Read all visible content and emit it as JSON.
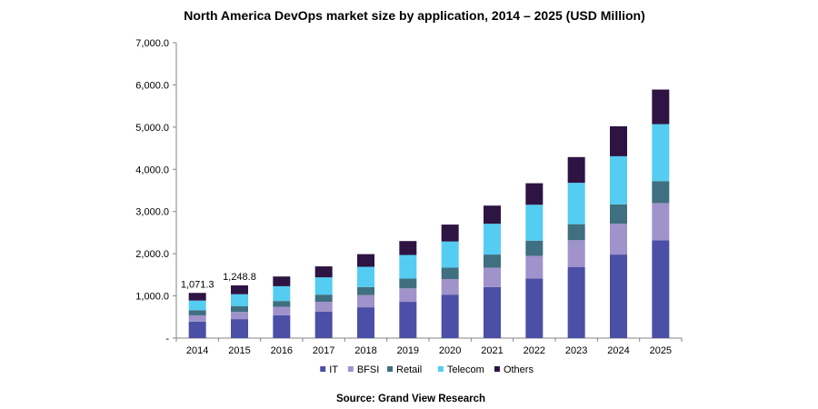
{
  "chart_data": {
    "type": "bar",
    "stacked": true,
    "title": "North America DevOps market size by application, 2014 – 2025 (USD Million)",
    "source": "Source: Grand View Research",
    "categories": [
      "2014",
      "2015",
      "2016",
      "2017",
      "2018",
      "2019",
      "2020",
      "2021",
      "2022",
      "2023",
      "2024",
      "2025"
    ],
    "series": [
      {
        "name": "IT",
        "color": "#4b4fa6",
        "values": [
          390,
          450,
          540,
          630,
          730,
          860,
          1030,
          1210,
          1410,
          1680,
          1980,
          2320
        ]
      },
      {
        "name": "BFSI",
        "color": "#a092cb",
        "values": [
          150,
          170,
          200,
          230,
          290,
          320,
          370,
          460,
          540,
          640,
          730,
          880
        ]
      },
      {
        "name": "Retail",
        "color": "#3f6f80",
        "values": [
          120,
          140,
          140,
          170,
          190,
          230,
          270,
          310,
          360,
          380,
          460,
          520
        ]
      },
      {
        "name": "Telecom",
        "color": "#55ccf2",
        "values": [
          230,
          280,
          350,
          410,
          480,
          560,
          620,
          730,
          850,
          980,
          1140,
          1350
        ]
      },
      {
        "name": "Others",
        "color": "#2d1443",
        "values": [
          181.3,
          208.8,
          230,
          260,
          300,
          330,
          400,
          430,
          510,
          610,
          710,
          820
        ]
      }
    ],
    "data_labels": {
      "2014": "1,071.3",
      "2015": "1,248.8"
    },
    "ylim": [
      0,
      7000
    ],
    "yticks": [
      0,
      1000,
      2000,
      3000,
      4000,
      5000,
      6000,
      7000
    ],
    "ytick_labels": [
      "-",
      "1,000.0",
      "2,000.0",
      "3,000.0",
      "4,000.0",
      "5,000.0",
      "6,000.0",
      "7,000.0"
    ],
    "grid": false,
    "legend_position": "bottom"
  }
}
